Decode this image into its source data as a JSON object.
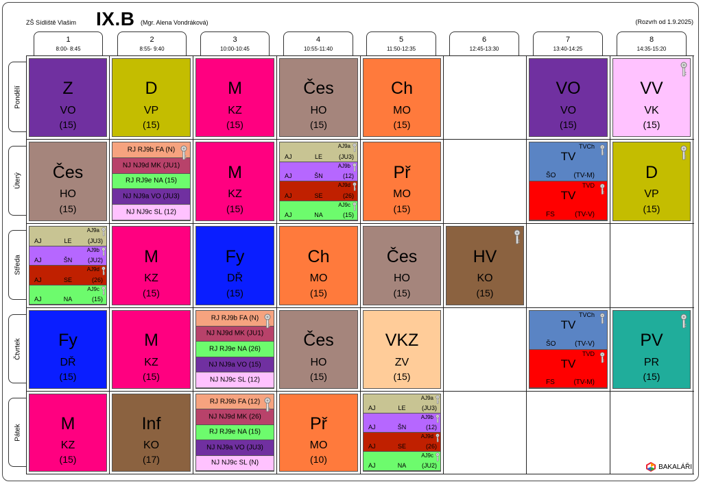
{
  "header": {
    "school": "ZŠ Sídliště Vlašim",
    "class": "IX.B",
    "teacher": "(Mgr. Alena Vondráková)",
    "validity": "(Rozvrh od 1.9.2025)"
  },
  "periods": [
    {
      "num": "1",
      "time": "8:00- 8:45"
    },
    {
      "num": "2",
      "time": "8:55- 9:40"
    },
    {
      "num": "3",
      "time": "10:00-10:45"
    },
    {
      "num": "4",
      "time": "10:55-11:40"
    },
    {
      "num": "5",
      "time": "11:50-12:35"
    },
    {
      "num": "6",
      "time": "12:45-13:30"
    },
    {
      "num": "7",
      "time": "13:40-14:25"
    },
    {
      "num": "8",
      "time": "14:35-15:20"
    }
  ],
  "days": [
    "Pondělí",
    "Úterý",
    "Středa",
    "Čtvrtek",
    "Pátek"
  ],
  "brand": "BAKALÁŘI",
  "lessons": [
    {
      "d": 0,
      "p": 0,
      "type": "single",
      "subj": "Z",
      "tch": "VO",
      "room": "(15)",
      "color": "#7030a0"
    },
    {
      "d": 0,
      "p": 1,
      "type": "single",
      "subj": "D",
      "tch": "VP",
      "room": "(15)",
      "color": "#c4bd00"
    },
    {
      "d": 0,
      "p": 2,
      "type": "single",
      "subj": "M",
      "tch": "KZ",
      "room": "(15)",
      "color": "#ff0080"
    },
    {
      "d": 0,
      "p": 3,
      "type": "single",
      "subj": "Čes",
      "tch": "HO",
      "room": "(15)",
      "color": "#a5857c"
    },
    {
      "d": 0,
      "p": 4,
      "type": "single",
      "subj": "Ch",
      "tch": "MO",
      "room": "(15)",
      "color": "#ff7a3c"
    },
    {
      "d": 0,
      "p": 6,
      "type": "single",
      "subj": "VO",
      "tch": "VO",
      "room": "(15)",
      "color": "#7030a0"
    },
    {
      "d": 0,
      "p": 7,
      "type": "single",
      "subj": "VV",
      "tch": "VK",
      "room": "(15)",
      "color": "#ffc2ff",
      "key": true
    },
    {
      "d": 1,
      "p": 0,
      "type": "single",
      "subj": "Čes",
      "tch": "HO",
      "room": "(15)",
      "color": "#a5857c"
    },
    {
      "d": 1,
      "p": 1,
      "type": "lang",
      "key": true,
      "rows": [
        {
          "text": "RJ RJ9b FA (N)",
          "color": "#f6a37f"
        },
        {
          "text": "NJ NJ9d MK (JU1)",
          "color": "#b8426a"
        },
        {
          "text": "RJ RJ9e NA (15)",
          "color": "#6dfb6d"
        },
        {
          "text": "NJ NJ9a VO (JU3)",
          "color": "#7030a0"
        },
        {
          "text": "NJ NJ9c SL (12)",
          "color": "#ffc2ff"
        }
      ]
    },
    {
      "d": 1,
      "p": 2,
      "type": "single",
      "subj": "M",
      "tch": "KZ",
      "room": "(15)",
      "color": "#ff0080"
    },
    {
      "d": 1,
      "p": 3,
      "type": "groups",
      "rows": [
        {
          "g": "AJ9a",
          "t": "AJ",
          "c": "LE",
          "r": "(JU3)",
          "color": "#c8c493"
        },
        {
          "g": "AJ9b",
          "t": "AJ",
          "c": "ŠN",
          "r": "(12)",
          "color": "#b667ff"
        },
        {
          "g": "AJ9d",
          "t": "AJ",
          "c": "SE",
          "r": "(26)",
          "color": "#c02000"
        },
        {
          "g": "AJ9c",
          "t": "AJ",
          "c": "NA",
          "r": "(15)",
          "color": "#6dfb6d"
        }
      ]
    },
    {
      "d": 1,
      "p": 4,
      "type": "single",
      "subj": "Př",
      "tch": "MO",
      "room": "(15)",
      "color": "#ff7a3c"
    },
    {
      "d": 1,
      "p": 6,
      "type": "split",
      "rows": [
        {
          "g": "TVCh",
          "s": "TV",
          "t": "ŠO",
          "r": "(TV-M)",
          "color": "#5a84c4"
        },
        {
          "g": "TVD",
          "s": "TV",
          "t": "FS",
          "r": "(TV-V)",
          "color": "#ff0000"
        }
      ]
    },
    {
      "d": 1,
      "p": 7,
      "type": "single",
      "subj": "D",
      "tch": "VP",
      "room": "(15)",
      "color": "#c4bd00",
      "key": true
    },
    {
      "d": 2,
      "p": 0,
      "type": "groups",
      "rows": [
        {
          "g": "AJ9a",
          "t": "AJ",
          "c": "LE",
          "r": "(JU3)",
          "color": "#c8c493"
        },
        {
          "g": "AJ9b",
          "t": "AJ",
          "c": "ŠN",
          "r": "(JU2)",
          "color": "#b667ff"
        },
        {
          "g": "AJ9d",
          "t": "AJ",
          "c": "SE",
          "r": "(26)",
          "color": "#c02000"
        },
        {
          "g": "AJ9c",
          "t": "AJ",
          "c": "NA",
          "r": "(15)",
          "color": "#6dfb6d"
        }
      ]
    },
    {
      "d": 2,
      "p": 1,
      "type": "single",
      "subj": "M",
      "tch": "KZ",
      "room": "(15)",
      "color": "#ff0080"
    },
    {
      "d": 2,
      "p": 2,
      "type": "single",
      "subj": "Fy",
      "tch": "DŘ",
      "room": "(15)",
      "color": "#0a1eff"
    },
    {
      "d": 2,
      "p": 3,
      "type": "single",
      "subj": "Ch",
      "tch": "MO",
      "room": "(15)",
      "color": "#ff7a3c"
    },
    {
      "d": 2,
      "p": 4,
      "type": "single",
      "subj": "Čes",
      "tch": "HO",
      "room": "(15)",
      "color": "#a5857c"
    },
    {
      "d": 2,
      "p": 5,
      "type": "single",
      "subj": "HV",
      "tch": "KO",
      "room": "(15)",
      "color": "#8b6240",
      "key": true
    },
    {
      "d": 3,
      "p": 0,
      "type": "single",
      "subj": "Fy",
      "tch": "DŘ",
      "room": "(15)",
      "color": "#0a1eff"
    },
    {
      "d": 3,
      "p": 1,
      "type": "single",
      "subj": "M",
      "tch": "KZ",
      "room": "(15)",
      "color": "#ff0080"
    },
    {
      "d": 3,
      "p": 2,
      "type": "lang",
      "key": true,
      "rows": [
        {
          "text": "RJ RJ9b FA (N)",
          "color": "#f6a37f"
        },
        {
          "text": "NJ NJ9d MK (JU1)",
          "color": "#b8426a"
        },
        {
          "text": "RJ RJ9e NA (26)",
          "color": "#6dfb6d"
        },
        {
          "text": "NJ NJ9a VO (15)",
          "color": "#7030a0"
        },
        {
          "text": "NJ NJ9c SL (12)",
          "color": "#ffc2ff"
        }
      ]
    },
    {
      "d": 3,
      "p": 3,
      "type": "single",
      "subj": "Čes",
      "tch": "HO",
      "room": "(15)",
      "color": "#a5857c"
    },
    {
      "d": 3,
      "p": 4,
      "type": "single",
      "subj": "VKZ",
      "tch": "ZV",
      "room": "(15)",
      "color": "#ffcc99"
    },
    {
      "d": 3,
      "p": 6,
      "type": "split",
      "rows": [
        {
          "g": "TVCh",
          "s": "TV",
          "t": "ŠO",
          "r": "(TV-V)",
          "color": "#5a84c4"
        },
        {
          "g": "TVD",
          "s": "TV",
          "t": "FS",
          "r": "(TV-M)",
          "color": "#ff0000"
        }
      ]
    },
    {
      "d": 3,
      "p": 7,
      "type": "single",
      "subj": "PV",
      "tch": "PR",
      "room": "(15)",
      "color": "#20ad9b",
      "key": true
    },
    {
      "d": 4,
      "p": 0,
      "type": "single",
      "subj": "M",
      "tch": "KZ",
      "room": "(15)",
      "color": "#ff0080"
    },
    {
      "d": 4,
      "p": 1,
      "type": "single",
      "subj": "Inf",
      "tch": "KO",
      "room": "(17)",
      "color": "#8b6240"
    },
    {
      "d": 4,
      "p": 2,
      "type": "lang",
      "key": true,
      "rows": [
        {
          "text": "RJ RJ9b FA (12)",
          "color": "#f6a37f"
        },
        {
          "text": "NJ NJ9d MK (26)",
          "color": "#b8426a"
        },
        {
          "text": "RJ RJ9e NA (15)",
          "color": "#6dfb6d"
        },
        {
          "text": "NJ NJ9a VO (JU3)",
          "color": "#7030a0"
        },
        {
          "text": "NJ NJ9c SL (N)",
          "color": "#ffc2ff"
        }
      ]
    },
    {
      "d": 4,
      "p": 3,
      "type": "single",
      "subj": "Př",
      "tch": "MO",
      "room": "(10)",
      "color": "#ff7a3c"
    },
    {
      "d": 4,
      "p": 4,
      "type": "groups",
      "rows": [
        {
          "g": "AJ9a",
          "t": "AJ",
          "c": "LE",
          "r": "(JU3)",
          "color": "#c8c493"
        },
        {
          "g": "AJ9b",
          "t": "AJ",
          "c": "ŠN",
          "r": "(12)",
          "color": "#b667ff"
        },
        {
          "g": "AJ9d",
          "t": "AJ",
          "c": "SE",
          "r": "(26)",
          "color": "#c02000"
        },
        {
          "g": "AJ9c",
          "t": "AJ",
          "c": "NA",
          "r": "(JU2)",
          "color": "#6dfb6d"
        }
      ]
    }
  ]
}
